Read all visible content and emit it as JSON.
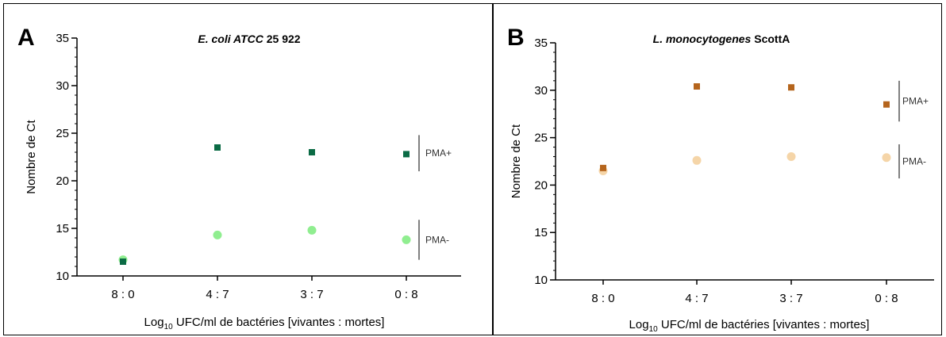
{
  "chart_data": [
    {
      "panel_letter": "A",
      "type": "scatter",
      "title_italic": "E. coli ATCC",
      "title_rest": " 25 922",
      "ylabel": "Nombre de Ct",
      "xlabel_prefix": "Log",
      "xlabel_sub": "10",
      "xlabel_suffix": " UFC/ml  de bactéries [vivantes : mortes]",
      "categories": [
        "8 : 0",
        "4 : 7",
        "3 : 7",
        "0 : 8"
      ],
      "ylim": [
        10,
        35
      ],
      "yticks": [
        10,
        15,
        20,
        25,
        30,
        35
      ],
      "series": [
        {
          "name": "PMA+",
          "marker": "square",
          "color": "#0b6b45",
          "values": [
            11.5,
            23.5,
            23.0,
            22.8
          ]
        },
        {
          "name": "PMA-",
          "marker": "circle",
          "color": "#90ee90",
          "values": [
            11.7,
            14.3,
            14.8,
            13.8
          ]
        }
      ],
      "annotations": [
        {
          "label": "PMA+",
          "y_range": [
            21.0,
            24.8
          ]
        },
        {
          "label": "PMA-",
          "y_range": [
            11.7,
            15.9
          ]
        }
      ]
    },
    {
      "panel_letter": "B",
      "type": "scatter",
      "title_italic": "L. monocytogenes",
      "title_rest": " ScottA",
      "ylabel": "Nombre de Ct",
      "xlabel_prefix": "Log",
      "xlabel_sub": "10",
      "xlabel_suffix": " UFC/ml  de bactéries [vivantes : mortes]",
      "categories": [
        "8 : 0",
        "4 : 7",
        "3 : 7",
        "0 : 8"
      ],
      "ylim": [
        10,
        35
      ],
      "yticks": [
        10,
        15,
        20,
        25,
        30,
        35
      ],
      "series": [
        {
          "name": "PMA+",
          "marker": "square",
          "color": "#b5651d",
          "values": [
            21.8,
            30.4,
            30.3,
            28.5
          ]
        },
        {
          "name": "PMA-",
          "marker": "circle",
          "color": "#f5d5a8",
          "values": [
            21.5,
            22.6,
            23.0,
            22.9
          ]
        }
      ],
      "annotations": [
        {
          "label": "PMA+",
          "y_range": [
            26.7,
            31.0
          ]
        },
        {
          "label": "PMA-",
          "y_range": [
            20.7,
            24.3
          ]
        }
      ]
    }
  ]
}
